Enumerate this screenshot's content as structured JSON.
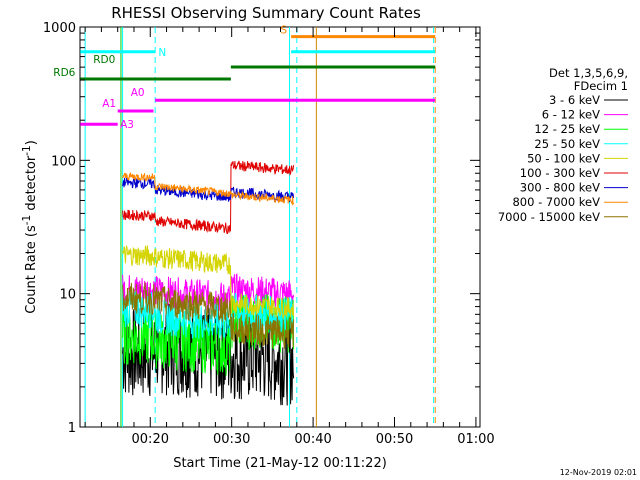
{
  "chart_data": {
    "type": "line",
    "title": "RHESSI Observing Summary Count Rates",
    "xlabel": "Start Time (21-May-12 00:11:22)",
    "ylabel_main": "Count Rate (s",
    "ylabel_sup1": "-1",
    "ylabel_mid": " detector",
    "ylabel_sup2": "-1",
    "ylabel_end": ")",
    "yscale": "log",
    "ylim": [
      1,
      1000
    ],
    "xlim_min": [
      11.37,
      60.5
    ],
    "y_ticks": [
      "1",
      "10",
      "100",
      "1000"
    ],
    "x_ticks": [
      {
        "label": "00:20",
        "min": 20
      },
      {
        "label": "00:30",
        "min": 30
      },
      {
        "label": "00:40",
        "min": 40
      },
      {
        "label": "00:50",
        "min": 50
      },
      {
        "label": "01:00",
        "min": 60
      }
    ],
    "legend_header": [
      "Det 1,3,5,6,9,",
      "FDecim 1"
    ],
    "series": [
      {
        "name": "3 - 6 keV",
        "color": "#000000",
        "base": 3.6,
        "seg2": 3.9,
        "seg3": 3.5,
        "noise": 0.35,
        "end": 37.6
      },
      {
        "name": "6 - 12 keV",
        "color": "#ff00ff",
        "base": 10.8,
        "seg2": 10.5,
        "seg3": 10.8,
        "noise": 0.12,
        "end": 37.6
      },
      {
        "name": "12 - 25 keV",
        "color": "#00ff00",
        "base": 4.8,
        "seg2": 4.5,
        "seg3": 6.4,
        "noise": 0.22,
        "end": 37.6
      },
      {
        "name": "25 - 50 keV",
        "color": "#00ffff",
        "base": 7.7,
        "seg2": 6.8,
        "seg3": 7.4,
        "noise": 0.14,
        "end": 37.6
      },
      {
        "name": "50 - 100 keV",
        "color": "#d4d400",
        "base": 19.5,
        "seg2": 18.8,
        "seg3": 8.5,
        "noise": 0.08,
        "end": 37.6
      },
      {
        "name": "100 - 300 keV",
        "color": "#e00000",
        "base": 39,
        "seg2": 35,
        "seg3": 92,
        "noise": 0.04,
        "end": 37.6
      },
      {
        "name": "300 - 800 keV",
        "color": "#0000cc",
        "base": 68,
        "seg2": 60,
        "seg3": 58,
        "noise": 0.04,
        "end": 37.6
      },
      {
        "name": "800 - 7000 keV",
        "color": "#ff8800",
        "base": 76,
        "seg2": 64,
        "seg3": 55,
        "noise": 0.03,
        "end": 37.6
      },
      {
        "name": "7000 - 15000 keV",
        "color": "#8b7500",
        "base": 9.3,
        "seg2": 8.8,
        "seg3": 5.5,
        "noise": 0.12,
        "end": 37.6
      }
    ],
    "vlines": [
      {
        "min": 12.0,
        "color": "#00ffff",
        "style": "solid"
      },
      {
        "min": 16.6,
        "color": "#00ffff",
        "style": "solid"
      },
      {
        "min": 16.4,
        "color": "#00cc00",
        "style": "solid"
      },
      {
        "min": 20.6,
        "color": "#00ffff",
        "style": "dashed"
      },
      {
        "min": 37.1,
        "color": "#00ffff",
        "style": "solid"
      },
      {
        "min": 38.0,
        "color": "#00ffff",
        "style": "dashed"
      },
      {
        "min": 40.4,
        "color": "#cc8800",
        "style": "solid"
      },
      {
        "min": 54.8,
        "color": "#00ffff",
        "style": "dashed"
      },
      {
        "min": 55.0,
        "color": "#ff8800",
        "style": "dashed"
      }
    ],
    "flags": [
      {
        "label": "N",
        "color": "#00ffff",
        "x0": 11.4,
        "x1": 20.6,
        "yfrac": 0.938,
        "lab_min": 21.0,
        "lab_side": "right"
      },
      {
        "label": "S",
        "color": "#ff8800",
        "x0": 37.3,
        "x1": 55.0,
        "yfrac": 0.976,
        "lab_min": 36.8,
        "lab_side": "left"
      },
      {
        "label": "S",
        "color": "#00ffff",
        "x0": 37.3,
        "x1": 55.0,
        "yfrac": 0.938,
        "lab_min": null,
        "lab_side": "none"
      },
      {
        "label": "RD0",
        "color": "#007700",
        "x0": 29.9,
        "x1": 55.0,
        "yfrac": 0.9,
        "lab_min": 13.0,
        "lab_side": "above"
      },
      {
        "label": "RD6",
        "color": "#007700",
        "x0": 11.4,
        "x1": 29.9,
        "yfrac": 0.87,
        "lab_min": 10.8,
        "lab_side": "left"
      },
      {
        "label": "A0",
        "color": "#ff00ff",
        "x0": 20.6,
        "x1": 55.0,
        "yfrac": 0.817,
        "lab_min": 17.6,
        "lab_side": "above"
      },
      {
        "label": "A1",
        "color": "#ff00ff",
        "x0": 16.0,
        "x1": 20.4,
        "yfrac": 0.79,
        "lab_min": 14.1,
        "lab_side": "above"
      },
      {
        "label": "A3",
        "color": "#ff00ff",
        "x0": 11.4,
        "x1": 16.0,
        "yfrac": 0.757,
        "lab_min": 16.3,
        "lab_side": "right"
      }
    ],
    "footer": "12-Nov-2019 02:01"
  }
}
